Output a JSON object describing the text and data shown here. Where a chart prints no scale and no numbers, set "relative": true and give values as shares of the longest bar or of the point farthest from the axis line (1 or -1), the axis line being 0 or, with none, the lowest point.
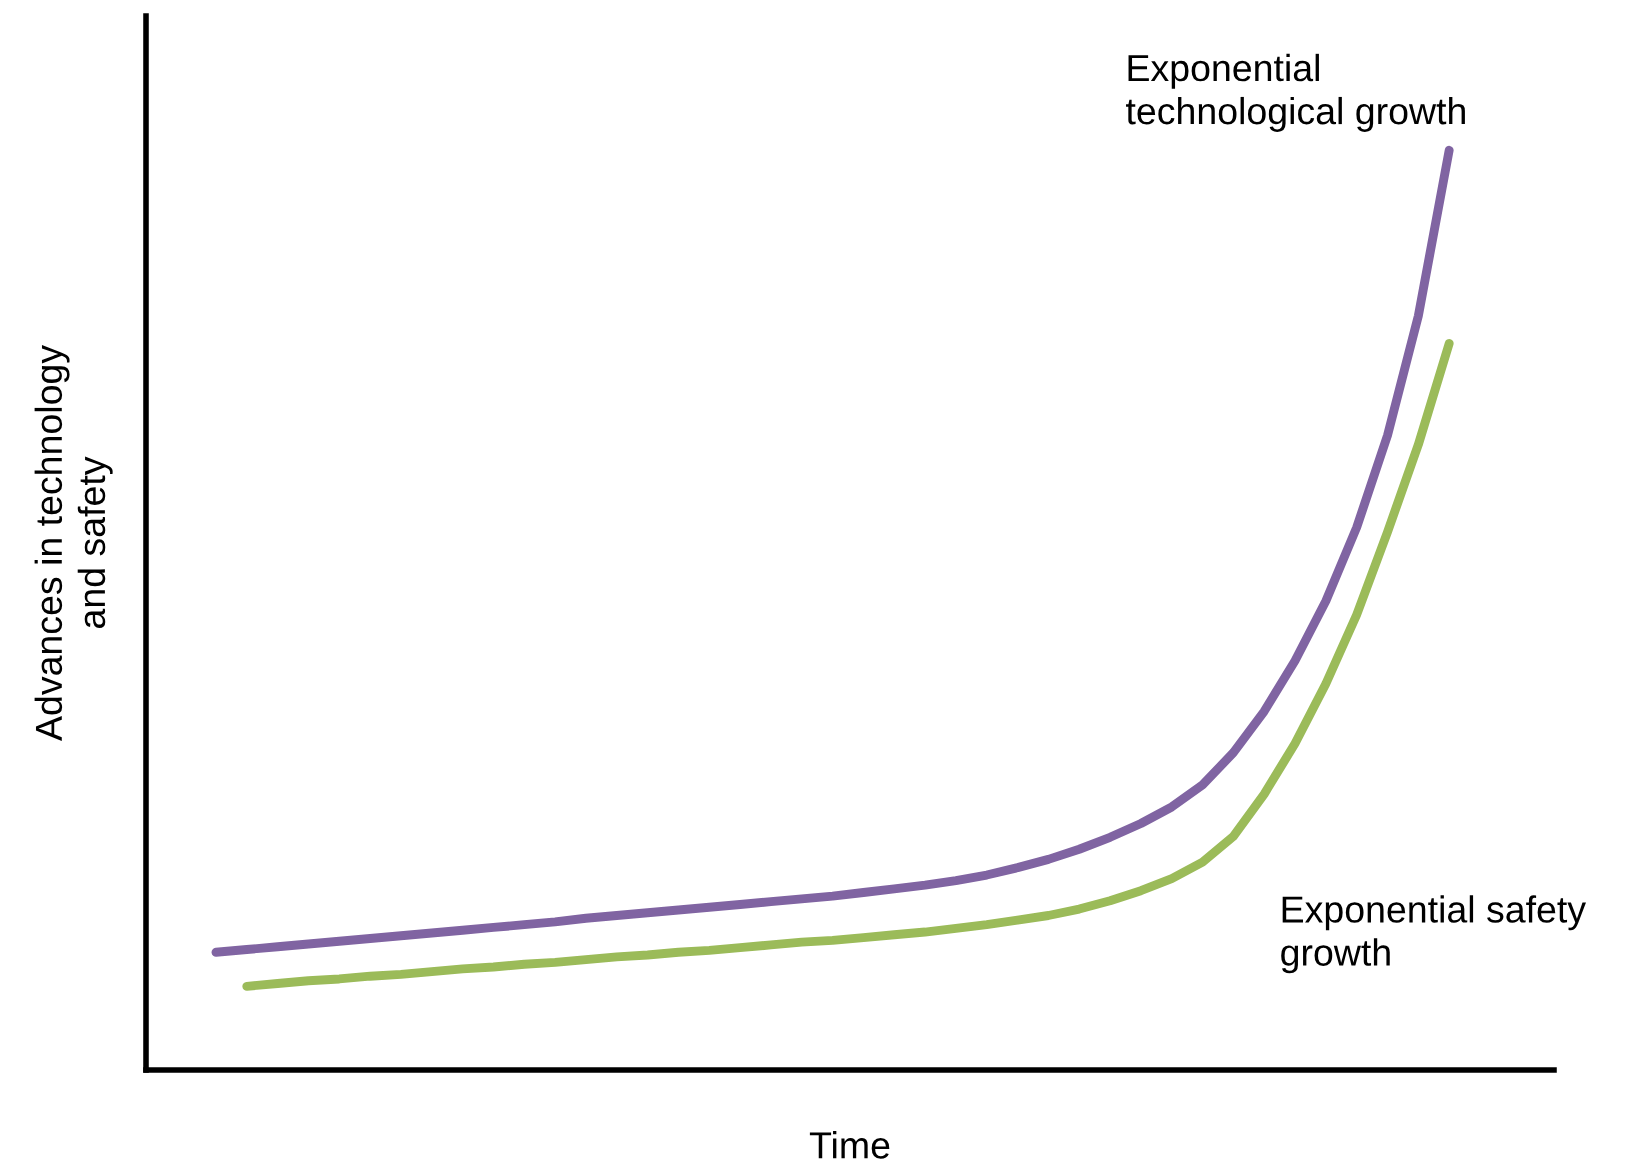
{
  "chart_data": {
    "type": "line",
    "relative": true,
    "xlabel": "Time",
    "ylabel": "Advances in technology\nand safety",
    "legend": false,
    "marker": "none",
    "line_style": "solid",
    "categories": [
      null,
      null,
      null,
      null,
      null,
      null,
      null,
      null,
      null,
      null,
      null,
      null,
      null,
      null,
      null,
      null,
      null,
      null,
      null,
      null,
      null,
      null,
      null,
      null,
      null,
      null,
      null,
      null,
      null,
      null,
      null,
      null,
      null,
      null,
      null,
      null,
      null,
      null,
      null,
      null,
      null
    ],
    "series": [
      {
        "name": "Exponential\ntechnological growth",
        "color": "#8064a2",
        "values": [
          0.128,
          0.131,
          0.134,
          0.137,
          0.14,
          0.143,
          0.146,
          0.149,
          0.152,
          0.155,
          0.158,
          0.161,
          0.165,
          0.168,
          0.171,
          0.174,
          0.177,
          0.18,
          0.183,
          0.186,
          0.189,
          0.193,
          0.197,
          0.201,
          0.206,
          0.212,
          0.22,
          0.229,
          0.24,
          0.253,
          0.268,
          0.286,
          0.31,
          0.345,
          0.39,
          0.445,
          0.51,
          0.59,
          0.69,
          0.82,
          1.0
        ]
      },
      {
        "name": "Exponential safety\ngrowth",
        "color": "#9bbb59",
        "values": [
          null,
          0.091,
          0.094,
          0.097,
          0.099,
          0.102,
          0.104,
          0.107,
          0.11,
          0.112,
          0.115,
          0.117,
          0.12,
          0.123,
          0.125,
          0.128,
          0.13,
          0.133,
          0.136,
          0.139,
          0.141,
          0.144,
          0.147,
          0.15,
          0.154,
          0.158,
          0.163,
          0.168,
          0.175,
          0.184,
          0.195,
          0.208,
          0.226,
          0.254,
          0.3,
          0.355,
          0.42,
          0.495,
          0.585,
          0.68,
          0.79
        ]
      }
    ]
  }
}
